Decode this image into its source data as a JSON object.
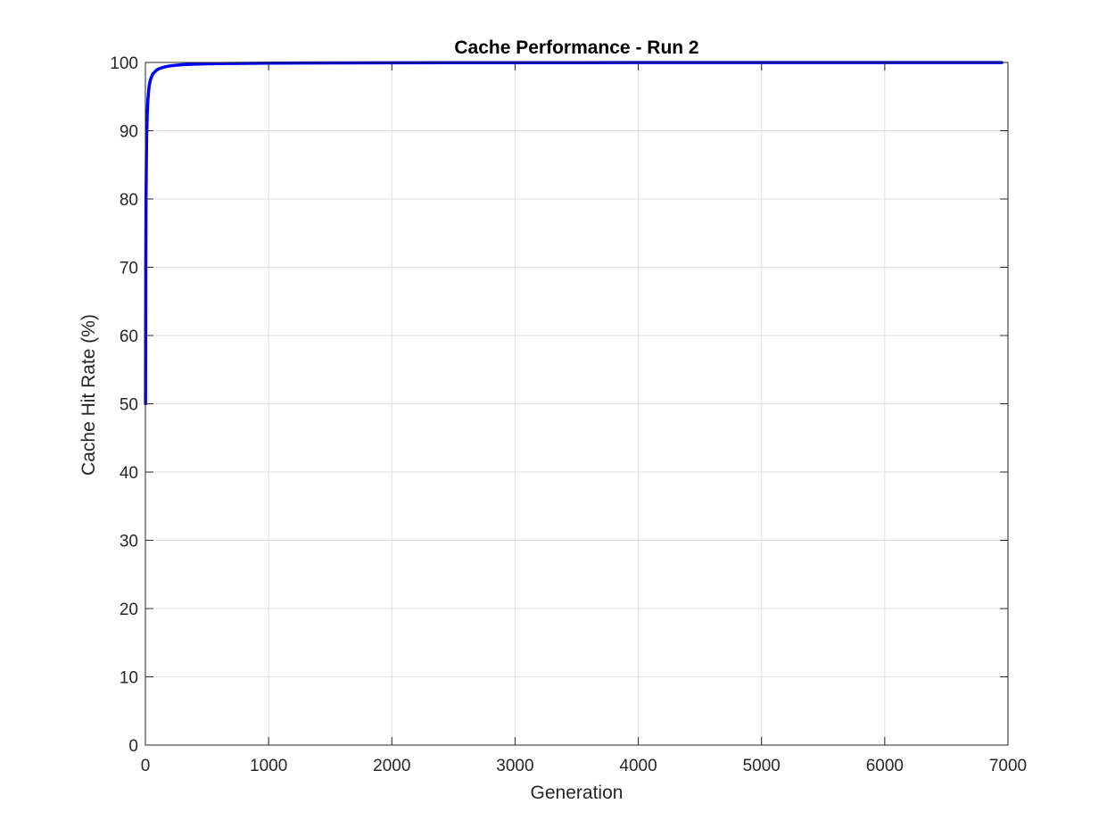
{
  "chart_data": {
    "type": "line",
    "title": "Cache Performance - Run 2",
    "xlabel": "Generation",
    "ylabel": "Cache Hit Rate (%)",
    "xlim": [
      0,
      7000
    ],
    "ylim": [
      0,
      100
    ],
    "xticks": [
      0,
      1000,
      2000,
      3000,
      4000,
      5000,
      6000,
      7000
    ],
    "yticks": [
      0,
      10,
      20,
      30,
      40,
      50,
      60,
      70,
      80,
      90,
      100
    ],
    "grid": true,
    "series": [
      {
        "color": "#0000ff",
        "x": [
          1,
          2,
          3,
          5,
          8,
          10,
          15,
          20,
          30,
          40,
          50,
          60,
          80,
          100,
          130,
          160,
          200,
          250,
          300,
          400,
          500,
          700,
          1000,
          1500,
          2000,
          3000,
          4000,
          5000,
          6000,
          6950
        ],
        "y": [
          50,
          60,
          70,
          80,
          86,
          89,
          92.5,
          94.5,
          96.5,
          97.4,
          97.9,
          98.3,
          98.7,
          99.0,
          99.2,
          99.35,
          99.5,
          99.6,
          99.67,
          99.75,
          99.8,
          99.86,
          99.9,
          99.93,
          99.95,
          99.97,
          99.98,
          99.98,
          99.99,
          99.99
        ]
      }
    ]
  }
}
